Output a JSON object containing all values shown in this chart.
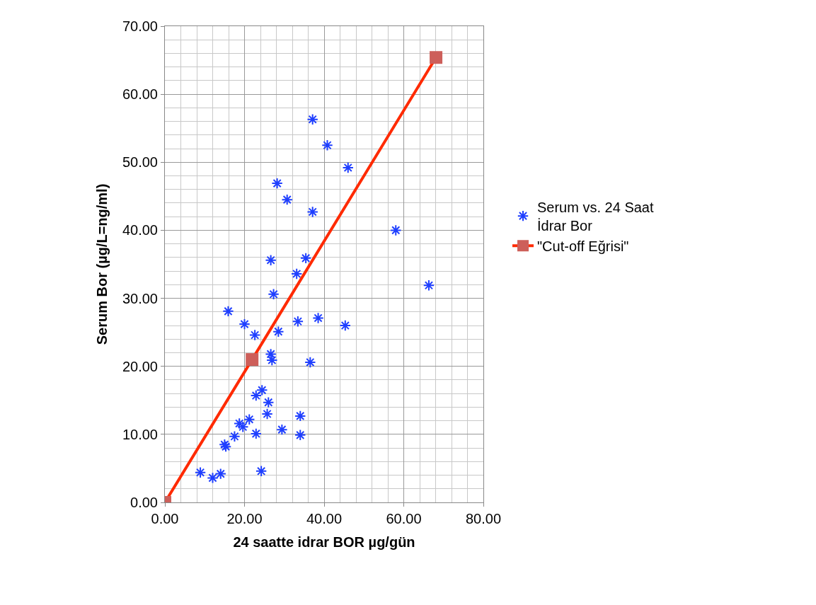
{
  "chart_data": {
    "type": "scatter",
    "xlabel": "24 saatte idrar BOR µg/gün",
    "ylabel": "Serum Bor (µg/L=ng/ml)",
    "xlim": [
      0,
      80
    ],
    "ylim": [
      0,
      70
    ],
    "xticks": [
      {
        "value": 0,
        "label": "0.00"
      },
      {
        "value": 20,
        "label": "20.00"
      },
      {
        "value": 40,
        "label": "40.00"
      },
      {
        "value": 60,
        "label": "60.00"
      },
      {
        "value": 80,
        "label": "80.00"
      }
    ],
    "yticks": [
      {
        "value": 0,
        "label": "0.00"
      },
      {
        "value": 10,
        "label": "10.00"
      },
      {
        "value": 20,
        "label": "20.00"
      },
      {
        "value": 30,
        "label": "30.00"
      },
      {
        "value": 40,
        "label": "40.00"
      },
      {
        "value": 50,
        "label": "50.00"
      },
      {
        "value": 60,
        "label": "60.00"
      },
      {
        "value": 70,
        "label": "70.00"
      }
    ],
    "grid": true,
    "legend": "right",
    "series": [
      {
        "name": "Serum vs. 24 Saat İdrar Bor",
        "marker": "cross",
        "color": "#1f3fff",
        "x": [
          37.1,
          40.8,
          46.0,
          28.2,
          30.7,
          37.1,
          58.0,
          26.6,
          35.4,
          33.1,
          66.3,
          27.3,
          15.9,
          20.0,
          22.6,
          28.5,
          33.4,
          38.5,
          45.3,
          26.6,
          26.9,
          36.5,
          24.4,
          22.9,
          26.0,
          25.7,
          34.0,
          21.2,
          18.7,
          19.6,
          22.9,
          29.4,
          34.0,
          17.5,
          15.0,
          15.3,
          8.9,
          12.0,
          14.0,
          24.2
        ],
        "values": [
          56.3,
          52.5,
          49.2,
          46.9,
          44.5,
          42.7,
          40.0,
          35.6,
          35.9,
          33.6,
          31.9,
          30.6,
          28.1,
          26.2,
          24.6,
          25.1,
          26.6,
          27.1,
          26.0,
          21.8,
          20.9,
          20.6,
          16.5,
          15.7,
          14.7,
          13.0,
          12.7,
          12.2,
          11.6,
          11.1,
          10.1,
          10.7,
          9.9,
          9.7,
          8.5,
          8.2,
          4.4,
          3.6,
          4.2,
          4.6
        ]
      },
      {
        "name": "\"Cut-off Eğrisi\"",
        "type": "line",
        "marker": "square",
        "color": "#ff2a00",
        "colors": [
          "#cd5f5a",
          "#cd5f5a",
          "#cd5f5a"
        ],
        "x": [
          0,
          21.9,
          68.1
        ],
        "values": [
          0,
          21.0,
          65.4
        ]
      }
    ]
  }
}
